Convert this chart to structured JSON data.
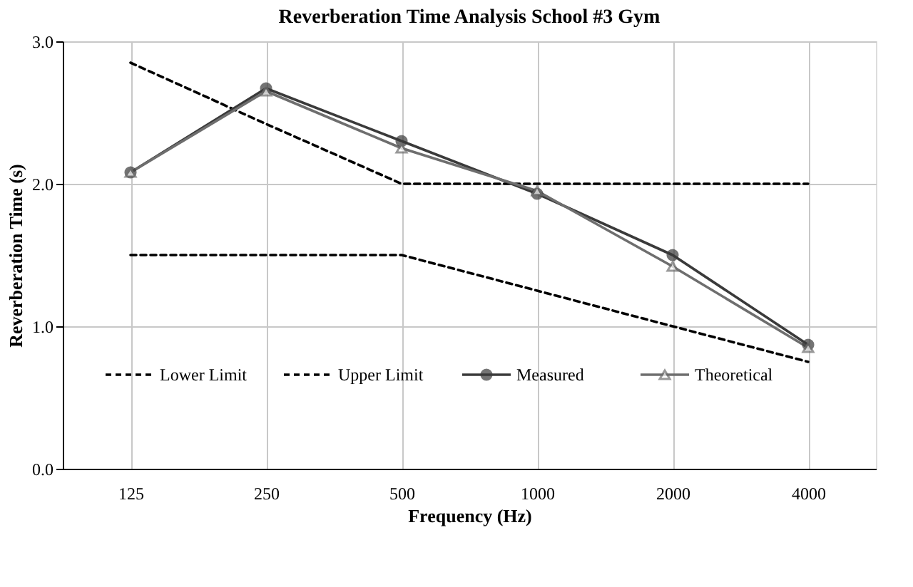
{
  "chart_data": {
    "type": "line",
    "title": "Reverberation Time Analysis School #3 Gym",
    "xlabel": "Frequency (Hz)",
    "ylabel": "Reverberation Time (s)",
    "categories": [
      "125",
      "250",
      "500",
      "1000",
      "2000",
      "4000"
    ],
    "series": [
      {
        "name": "Lower Limit",
        "color": "#000000",
        "line_style": "dashed",
        "marker": "none",
        "values": [
          1.5,
          1.5,
          1.5,
          1.25,
          1.0,
          0.75
        ]
      },
      {
        "name": "Upper Limit",
        "color": "#000000",
        "line_style": "dashed",
        "marker": "none",
        "values": [
          2.85,
          2.42,
          2.0,
          2.0,
          2.0,
          2.0
        ]
      },
      {
        "name": "Measured",
        "color": "#3a3a3a",
        "line_style": "solid",
        "marker": "circle",
        "values": [
          2.08,
          2.67,
          2.3,
          1.93,
          1.5,
          0.87
        ]
      },
      {
        "name": "Theoretical",
        "color": "#6e6e6e",
        "line_style": "solid",
        "marker": "triangle",
        "values": [
          2.08,
          2.65,
          2.25,
          1.95,
          1.42,
          0.85
        ]
      }
    ],
    "ylim": [
      0,
      3
    ],
    "yticks": [
      {
        "value": 0,
        "label": "0.0"
      },
      {
        "value": 1,
        "label": "1.0"
      },
      {
        "value": 2,
        "label": "2.0"
      },
      {
        "value": 3,
        "label": "3.0"
      }
    ],
    "grid": true,
    "legend": "bottom"
  }
}
